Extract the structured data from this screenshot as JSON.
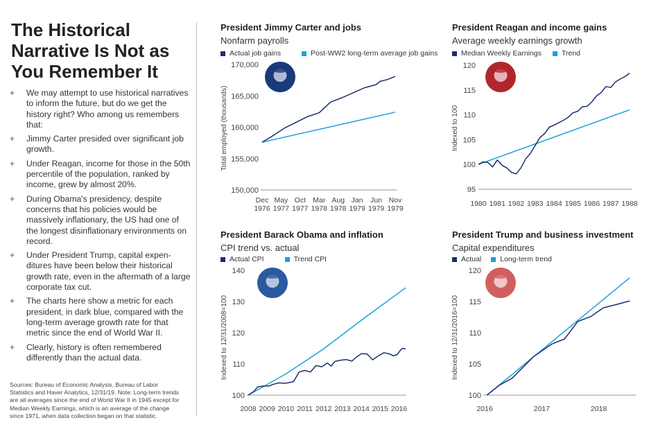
{
  "left": {
    "headline": "The Historical Narrative Is Not as You Remember It",
    "bullet_marker": "+",
    "bullets": [
      "We may attempt to use historical narratives to inform the future, but do we get the history right? Who among us remembers that:",
      "Jimmy Carter presided over significant job growth.",
      "Under Reagan, income for those in the 50th percentile of the population, ranked by income, grew by almost 20%.",
      "During Obama's presidency, despite concerns that his policies would be massively inflationary, the US had one of the longest disinflationary environments on record.",
      "Under President Trump, capital expen-ditures have been below their historical growth rate, even in the aftermath of a large corporate tax cut.",
      "The charts here show a metric for each president, in dark blue, compared with the long-term average growth rate for that metric since the end of World War II.",
      "Clearly, history is often remembered differently than the actual data."
    ],
    "sources": "Sources: Bureau of Economic Analysis, Bureau of Labor Statistics and Haver Analytics, 12/31/19. Note: Long-term trends are all averages since the end of World War II in 1945 except for Median Weekly Earnings, which is an average of the change since 1971, when data collection began on that statistic."
  },
  "colors": {
    "actual": "#1b2f6e",
    "trend": "#1ba1dc",
    "axis": "#aaaaaa"
  },
  "chart_data": [
    {
      "type": "line",
      "title": "President Jimmy Carter and jobs",
      "subtitle": "Nonfarm payrolls",
      "ylabel": "Total employed (thousands)",
      "xlabel": "",
      "photo": "jimmy-carter-portrait",
      "photo_color": "#1b3a7a",
      "x_type": "month",
      "xlim": [
        "1976-12",
        "1979-11"
      ],
      "ylim": [
        150000,
        170000
      ],
      "yticks": [
        150000,
        155000,
        160000,
        165000,
        170000
      ],
      "ytick_labels": [
        "150,000",
        "155,000",
        "160,000",
        "165,000",
        "170,000"
      ],
      "xticks": [
        "1976-12",
        "1977-05",
        "1977-10",
        "1978-03",
        "1978-08",
        "1979-01",
        "1979-06",
        "1979-11"
      ],
      "xtick_labels": [
        [
          "Dec",
          "1976"
        ],
        [
          "May",
          "1977"
        ],
        [
          "Oct",
          "1977"
        ],
        [
          "Mar",
          "1978"
        ],
        [
          "Aug",
          "1978"
        ],
        [
          "Jan",
          "1979"
        ],
        [
          "Jun",
          "1979"
        ],
        [
          "Nov",
          "1979"
        ]
      ],
      "legend_position": "top",
      "grid": false,
      "series": [
        {
          "name": "Actual job gains",
          "color": "#1b2f6e",
          "x": [
            "1976-12",
            "1977-03",
            "1977-06",
            "1977-09",
            "1977-12",
            "1978-03",
            "1978-06",
            "1978-09",
            "1978-12",
            "1979-03",
            "1979-06",
            "1979-07",
            "1979-09",
            "1979-11"
          ],
          "y": [
            157600,
            158700,
            159900,
            160800,
            161700,
            162300,
            164000,
            164700,
            165500,
            166300,
            166800,
            167300,
            167600,
            168100
          ]
        },
        {
          "name": "Post-WW2 long-term average job gains",
          "color": "#1ba1dc",
          "x": [
            "1976-12",
            "1979-11"
          ],
          "y": [
            157600,
            162400
          ]
        }
      ]
    },
    {
      "type": "line",
      "title": "President Reagan and income gains",
      "subtitle": "Average weekly earnings growth",
      "ylabel": "Indexed to 100",
      "xlabel": "",
      "photo": "ronald-reagan-portrait",
      "photo_color": "#b2262b",
      "x_type": "year",
      "xlim": [
        1980,
        1988
      ],
      "ylim": [
        95,
        120
      ],
      "yticks": [
        95,
        100,
        105,
        110,
        115,
        120
      ],
      "ytick_labels": [
        "95",
        "100",
        "105",
        "110",
        "115",
        "120"
      ],
      "xticks": [
        1980,
        1981,
        1982,
        1983,
        1984,
        1985,
        1986,
        1987,
        1988
      ],
      "xtick_labels": [
        [
          "1980"
        ],
        [
          "1981"
        ],
        [
          "1982"
        ],
        [
          "1983"
        ],
        [
          "1984"
        ],
        [
          "1985"
        ],
        [
          "1986"
        ],
        [
          "1987"
        ],
        [
          "1988"
        ]
      ],
      "legend_position": "top",
      "grid": false,
      "series": [
        {
          "name": "Median Weekly Earnings",
          "color": "#1b2f6e",
          "x": [
            1980,
            1980.25,
            1980.5,
            1980.75,
            1981,
            1981.25,
            1981.5,
            1981.75,
            1982,
            1982.25,
            1982.5,
            1982.75,
            1983,
            1983.25,
            1983.5,
            1983.75,
            1984,
            1984.25,
            1984.5,
            1984.75,
            1985,
            1985.25,
            1985.5,
            1985.75,
            1986,
            1986.25,
            1986.5,
            1986.75,
            1987,
            1987.25,
            1987.5,
            1987.75,
            1988
          ],
          "y": [
            100,
            100.5,
            100.4,
            99.5,
            100.9,
            99.8,
            99.3,
            98.4,
            98.1,
            99.3,
            101.1,
            102.2,
            103.8,
            105.4,
            106.2,
            107.5,
            107.9,
            108.4,
            108.9,
            109.5,
            110.4,
            110.7,
            111.6,
            111.7,
            112.6,
            113.8,
            114.5,
            115.7,
            115.5,
            116.6,
            117.2,
            117.7,
            118.4
          ]
        },
        {
          "name": "Trend",
          "color": "#1ba1dc",
          "x": [
            1980,
            1988
          ],
          "y": [
            100,
            111
          ]
        }
      ]
    },
    {
      "type": "line",
      "title": "President Barack Obama and inflation",
      "subtitle": "CPI trend vs. actual",
      "ylabel": "Indexed to 12/31/2008=100",
      "xlabel": "",
      "photo": "barack-obama-portrait",
      "photo_color": "#2c5aa0",
      "x_type": "year",
      "xlim": [
        2008,
        2016.35
      ],
      "ylim": [
        100,
        140
      ],
      "yticks": [
        100,
        110,
        120,
        130,
        140
      ],
      "ytick_labels": [
        "100",
        "110",
        "120",
        "130",
        "140"
      ],
      "xticks": [
        2008,
        2009,
        2010,
        2011,
        2012,
        2013,
        2014,
        2015,
        2016
      ],
      "xtick_labels": [
        [
          "2008"
        ],
        [
          "2009"
        ],
        [
          "2010"
        ],
        [
          "2011"
        ],
        [
          "2012"
        ],
        [
          "2013"
        ],
        [
          "2014"
        ],
        [
          "2015"
        ],
        [
          "2016"
        ]
      ],
      "legend_position": "top",
      "grid": false,
      "series": [
        {
          "name": "Actual CPI",
          "color": "#1b2f6e",
          "x": [
            2008,
            2008.3,
            2008.5,
            2008.8,
            2009.1,
            2009.3,
            2009.6,
            2010,
            2010.4,
            2010.7,
            2011,
            2011.3,
            2011.6,
            2011.9,
            2012.2,
            2012.4,
            2012.6,
            2012.9,
            2013.2,
            2013.5,
            2013.7,
            2014,
            2014.3,
            2014.6,
            2014.9,
            2015.2,
            2015.5,
            2015.7,
            2015.9,
            2016.1,
            2016.2,
            2016.35
          ],
          "y": [
            100,
            101.2,
            102.6,
            102.9,
            102.9,
            103.4,
            103.9,
            103.8,
            104.3,
            107.4,
            107.9,
            107.4,
            109.5,
            109.1,
            110.3,
            109.3,
            110.8,
            111.2,
            111.4,
            110.9,
            112.0,
            113.3,
            113.2,
            111.3,
            112.6,
            113.6,
            113.2,
            112.6,
            113.0,
            114.6,
            115.0,
            114.8
          ]
        },
        {
          "name": "Trend CPI",
          "color": "#1ba1dc",
          "x": [
            2008,
            2010,
            2012,
            2014,
            2016.35
          ],
          "y": [
            100,
            106.8,
            114.8,
            124.0,
            134.4
          ]
        }
      ]
    },
    {
      "type": "line",
      "title": "President Trump and business investment",
      "subtitle": "Capital expenditures",
      "ylabel": "Indexed to 12/31/2016=100",
      "xlabel": "",
      "photo": "donald-trump-portrait",
      "photo_color": "#d0605f",
      "x_type": "year",
      "xlim": [
        2016,
        2018.6
      ],
      "ylim": [
        100,
        120
      ],
      "yticks": [
        100,
        105,
        110,
        115,
        120
      ],
      "ytick_labels": [
        "100",
        "105",
        "110",
        "115",
        "120"
      ],
      "xticks": [
        2016,
        2017,
        2018
      ],
      "xtick_labels": [
        [
          "2016"
        ],
        [
          "2017"
        ],
        [
          "2018"
        ]
      ],
      "legend_position": "top",
      "grid": false,
      "series": [
        {
          "name": "Actual",
          "color": "#1b2f6e",
          "x": [
            2016.04,
            2016.26,
            2016.48,
            2016.86,
            2017.18,
            2017.4,
            2017.63,
            2017.86,
            2018.08,
            2018.3,
            2018.54
          ],
          "y": [
            100,
            101.6,
            102.7,
            106.2,
            108.2,
            109.0,
            111.8,
            112.6,
            114.0,
            114.5,
            115.1
          ]
        },
        {
          "name": "Long-term trend",
          "color": "#1ba1dc",
          "x": [
            2016.04,
            2018.54
          ],
          "y": [
            100,
            118.8
          ]
        }
      ]
    }
  ]
}
